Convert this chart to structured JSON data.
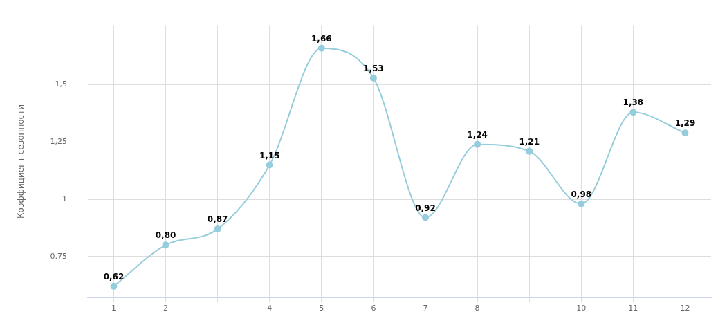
{
  "chart_data": {
    "type": "line",
    "ylabel": "Коэффициент сезонности",
    "categories": [
      "1",
      "2",
      null,
      "4",
      "5",
      "6",
      "7",
      "8",
      null,
      "10",
      "11",
      "12"
    ],
    "series": [
      {
        "color": "#96cddc",
        "values": [
          0.62,
          0.8,
          0.87,
          1.15,
          1.66,
          1.53,
          0.92,
          1.24,
          1.21,
          0.98,
          1.38,
          1.29
        ],
        "value_labels": [
          "0,62",
          "0,80",
          "0,87",
          "1,15",
          "1,66",
          "1,53",
          "0,92",
          "1,24",
          "1,21",
          "0,98",
          "1,38",
          "1,29"
        ]
      }
    ],
    "ylim": [
      0.57,
      1.76
    ],
    "yticks": [
      {
        "value": 0.75,
        "label": "0,75"
      },
      {
        "value": 1,
        "label": "1"
      },
      {
        "value": 1.25,
        "label": "1,25"
      },
      {
        "value": 1.5,
        "label": "1,5"
      }
    ],
    "grid": true,
    "marker": "circle",
    "legend": false
  }
}
